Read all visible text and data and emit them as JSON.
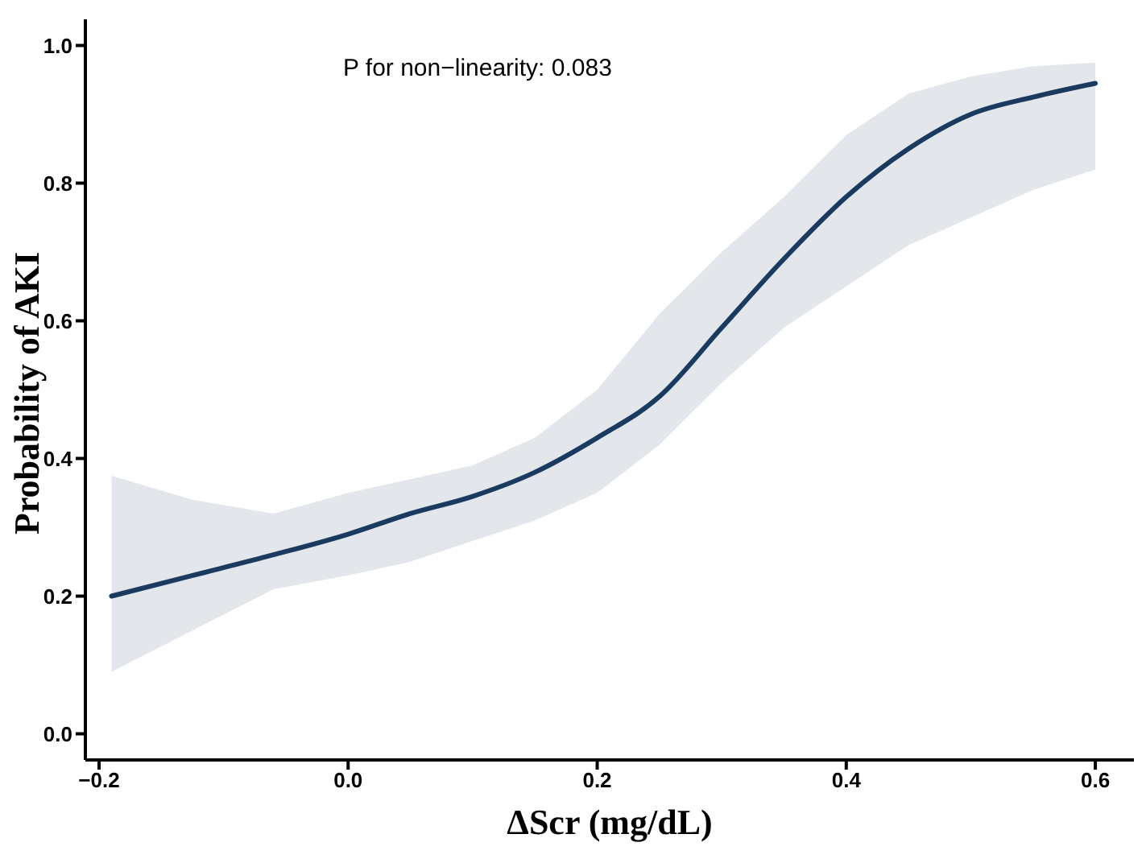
{
  "chart_data": {
    "type": "line",
    "xlabel": "ΔScr (mg/dL)",
    "ylabel": "Probability of AKI",
    "annotations": [
      "P for non−linearity: 0.083"
    ],
    "x": [
      -0.19,
      -0.125,
      -0.06,
      0,
      0.05,
      0.1,
      0.15,
      0.2,
      0.25,
      0.3,
      0.35,
      0.4,
      0.45,
      0.5,
      0.55,
      0.6
    ],
    "series": [
      {
        "color": "#1a3a5f",
        "values": [
          0.2,
          0.23,
          0.26,
          0.29,
          0.32,
          0.345,
          0.38,
          0.43,
          0.49,
          0.59,
          0.69,
          0.78,
          0.85,
          0.9,
          0.925,
          0.945
        ],
        "lower": [
          0.09,
          0.15,
          0.21,
          0.23,
          0.25,
          0.28,
          0.31,
          0.35,
          0.42,
          0.51,
          0.59,
          0.65,
          0.71,
          0.75,
          0.79,
          0.82
        ],
        "upper": [
          0.375,
          0.34,
          0.32,
          0.35,
          0.37,
          0.39,
          0.43,
          0.5,
          0.61,
          0.7,
          0.78,
          0.87,
          0.93,
          0.955,
          0.97,
          0.975
        ]
      }
    ],
    "xlim": [
      -0.211,
      0.631
    ],
    "xticks": [
      {
        "value": -0.2,
        "label": "−0.2"
      },
      {
        "value": 0,
        "label": "0.0"
      },
      {
        "value": 0.2,
        "label": "0.2"
      },
      {
        "value": 0.4,
        "label": "0.4"
      },
      {
        "value": 0.6,
        "label": "0.6"
      }
    ],
    "ylim": [
      -0.038,
      1.038
    ],
    "yticks": [
      {
        "value": 0,
        "label": "0.0"
      },
      {
        "value": 0.2,
        "label": "0.2"
      },
      {
        "value": 0.4,
        "label": "0.4"
      },
      {
        "value": 0.6,
        "label": "0.6"
      },
      {
        "value": 0.8,
        "label": "0.8"
      },
      {
        "value": 1,
        "label": "1.0"
      }
    ],
    "grid": false,
    "legend": false,
    "marker": "none",
    "line_style": "solid"
  }
}
